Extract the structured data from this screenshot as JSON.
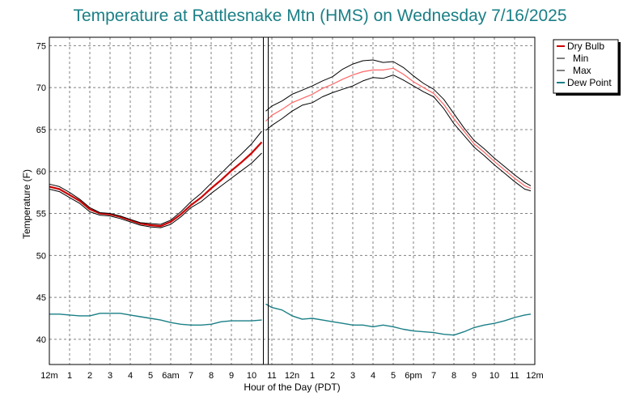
{
  "chart_data": {
    "type": "line",
    "title": "Temperature at Rattlesnake Mtn (HMS) on Wednesday 7/16/2025",
    "xlabel": "Hour of the Day (PDT)",
    "ylabel": "Temperature (F)",
    "xlim": [
      0,
      24
    ],
    "ylim": [
      37,
      76
    ],
    "x_ticks": [
      {
        "x": 0,
        "label": "12m"
      },
      {
        "x": 1,
        "label": "1"
      },
      {
        "x": 2,
        "label": "2"
      },
      {
        "x": 3,
        "label": "3"
      },
      {
        "x": 4,
        "label": "4"
      },
      {
        "x": 5,
        "label": "5"
      },
      {
        "x": 6,
        "label": "6am"
      },
      {
        "x": 7,
        "label": "7"
      },
      {
        "x": 8,
        "label": "8"
      },
      {
        "x": 9,
        "label": "9"
      },
      {
        "x": 10,
        "label": "10"
      },
      {
        "x": 11,
        "label": "11"
      },
      {
        "x": 12,
        "label": "12n"
      },
      {
        "x": 13,
        "label": "1"
      },
      {
        "x": 14,
        "label": "2"
      },
      {
        "x": 15,
        "label": "3"
      },
      {
        "x": 16,
        "label": "4"
      },
      {
        "x": 17,
        "label": "5"
      },
      {
        "x": 18,
        "label": "6pm"
      },
      {
        "x": 19,
        "label": "7"
      },
      {
        "x": 20,
        "label": "8"
      },
      {
        "x": 21,
        "label": "9"
      },
      {
        "x": 22,
        "label": "10"
      },
      {
        "x": 23,
        "label": "11"
      },
      {
        "x": 24,
        "label": "12m"
      }
    ],
    "y_ticks": [
      40,
      45,
      50,
      55,
      60,
      65,
      70,
      75
    ],
    "current_time_marker": 10.7,
    "legend": [
      "Dry Bulb",
      "Min",
      "Max",
      "Dew Point"
    ],
    "series": [
      {
        "name": "Dry Bulb",
        "color": "#cc0000",
        "x": [
          0,
          0.5,
          1,
          1.5,
          2,
          2.5,
          3,
          3.5,
          4,
          4.5,
          5,
          5.5,
          6,
          6.5,
          7,
          7.5,
          8,
          8.5,
          9,
          9.5,
          10,
          10.5
        ],
        "y": [
          58.2,
          57.9,
          57.2,
          56.5,
          55.5,
          55.0,
          54.9,
          54.6,
          54.2,
          53.8,
          53.6,
          53.5,
          54.0,
          54.9,
          56.0,
          56.9,
          58.0,
          59.0,
          60.1,
          61.1,
          62.2,
          63.5
        ]
      },
      {
        "name": "Dry Bulb",
        "color": "#ff6666",
        "x": [
          10.7,
          11,
          11.5,
          12,
          12.5,
          13,
          13.5,
          14,
          14.5,
          15,
          15.5,
          16,
          16.5,
          17,
          17.5,
          18,
          18.5,
          19,
          19.5,
          20,
          20.5,
          21,
          21.5,
          22,
          22.5,
          23,
          23.5,
          23.8
        ],
        "y": [
          66.0,
          66.7,
          67.4,
          68.2,
          68.7,
          69.2,
          69.9,
          70.4,
          71.0,
          71.5,
          71.9,
          72.1,
          72.1,
          72.3,
          71.6,
          70.7,
          70.0,
          69.3,
          68.0,
          66.3,
          64.8,
          63.3,
          62.3,
          61.2,
          60.2,
          59.2,
          58.3,
          58.0
        ]
      },
      {
        "name": "Max",
        "color": "#000000",
        "x": [
          0,
          0.5,
          1,
          1.5,
          2,
          2.5,
          3,
          3.5,
          4,
          4.5,
          5,
          5.5,
          6,
          6.5,
          7,
          7.5,
          8,
          8.5,
          9,
          9.5,
          10,
          10.5
        ],
        "y": [
          58.5,
          58.2,
          57.5,
          56.7,
          55.7,
          55.1,
          55.0,
          54.7,
          54.3,
          53.9,
          53.8,
          53.7,
          54.2,
          55.2,
          56.4,
          57.4,
          58.6,
          59.8,
          61.0,
          62.1,
          63.3,
          64.8
        ]
      },
      {
        "name": "Max",
        "color": "#000000",
        "x": [
          10.7,
          11,
          11.5,
          12,
          12.5,
          13,
          13.5,
          14,
          14.5,
          15,
          15.5,
          16,
          16.5,
          17,
          17.5,
          18,
          18.5,
          19,
          19.5,
          20,
          20.5,
          21,
          21.5,
          22,
          22.5,
          23,
          23.5,
          23.8
        ],
        "y": [
          67.2,
          67.8,
          68.4,
          69.2,
          69.7,
          70.2,
          70.8,
          71.3,
          72.2,
          72.8,
          73.2,
          73.3,
          73.0,
          73.1,
          72.4,
          71.4,
          70.5,
          69.8,
          68.6,
          66.9,
          65.2,
          63.7,
          62.7,
          61.6,
          60.6,
          59.6,
          58.7,
          58.3
        ]
      },
      {
        "name": "Min",
        "color": "#000000",
        "x": [
          0,
          0.5,
          1,
          1.5,
          2,
          2.5,
          3,
          3.5,
          4,
          4.5,
          5,
          5.5,
          6,
          6.5,
          7,
          7.5,
          8,
          8.5,
          9,
          9.5,
          10,
          10.5
        ],
        "y": [
          57.9,
          57.6,
          56.9,
          56.2,
          55.2,
          54.8,
          54.7,
          54.4,
          54.0,
          53.6,
          53.4,
          53.3,
          53.7,
          54.6,
          55.7,
          56.4,
          57.4,
          58.3,
          59.2,
          60.1,
          61.0,
          62.2
        ]
      },
      {
        "name": "Min",
        "color": "#000000",
        "x": [
          10.7,
          11,
          11.5,
          12,
          12.5,
          13,
          13.5,
          14,
          14.5,
          15,
          15.5,
          16,
          16.5,
          17,
          17.5,
          18,
          18.5,
          19,
          19.5,
          20,
          20.5,
          21,
          21.5,
          22,
          22.5,
          23,
          23.5,
          23.8
        ],
        "y": [
          64.9,
          65.5,
          66.3,
          67.2,
          67.9,
          68.2,
          68.9,
          69.4,
          69.8,
          70.2,
          70.8,
          71.2,
          71.1,
          71.5,
          70.9,
          70.2,
          69.5,
          68.9,
          67.5,
          65.7,
          64.3,
          62.9,
          61.9,
          60.8,
          59.8,
          58.8,
          57.9,
          57.7
        ]
      },
      {
        "name": "Dew Point",
        "color": "#1a7f86",
        "x": [
          0,
          0.5,
          1,
          1.5,
          2,
          2.5,
          3,
          3.5,
          4,
          4.5,
          5,
          5.5,
          6,
          6.5,
          7,
          7.5,
          8,
          8.5,
          9,
          9.5,
          10,
          10.5
        ],
        "y": [
          43.0,
          43.0,
          42.9,
          42.8,
          42.8,
          43.1,
          43.1,
          43.1,
          42.9,
          42.7,
          42.5,
          42.3,
          42.0,
          41.8,
          41.7,
          41.7,
          41.8,
          42.1,
          42.2,
          42.2,
          42.2,
          42.3
        ]
      },
      {
        "name": "Dew Point",
        "color": "#1a7f86",
        "x": [
          10.7,
          11,
          11.5,
          12,
          12.5,
          13,
          13.5,
          14,
          14.5,
          15,
          15.5,
          16,
          16.5,
          17,
          17.5,
          18,
          18.5,
          19,
          19.5,
          20,
          20.5,
          21,
          21.5,
          22,
          22.5,
          23,
          23.5,
          23.8
        ],
        "y": [
          44.2,
          43.8,
          43.5,
          42.8,
          42.4,
          42.5,
          42.3,
          42.1,
          41.9,
          41.7,
          41.7,
          41.5,
          41.7,
          41.5,
          41.2,
          41.0,
          40.9,
          40.8,
          40.6,
          40.5,
          40.9,
          41.4,
          41.7,
          41.9,
          42.2,
          42.6,
          42.9,
          43.0
        ]
      }
    ]
  }
}
